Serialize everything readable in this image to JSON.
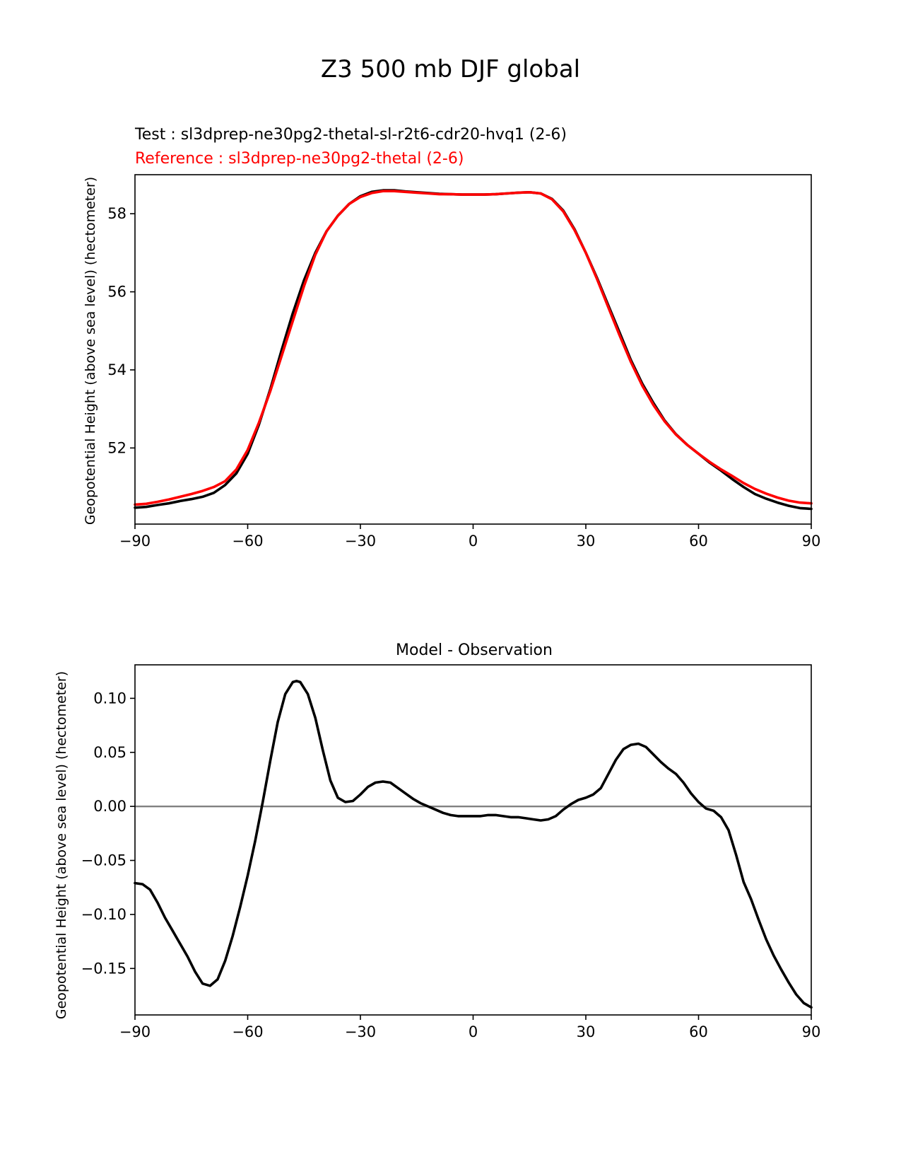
{
  "figure": {
    "title": "Z3 500 mb DJF global"
  },
  "colors": {
    "test": "#000000",
    "reference": "#ff0000",
    "zero_line": "#808080"
  },
  "chart_data": [
    {
      "type": "line",
      "test_label": "Test : sl3dprep-ne30pg2-thetal-sl-r2t6-cdr20-hvq1 (2-6)",
      "reference_label": "Reference : sl3dprep-ne30pg2-thetal (2-6)",
      "title": "",
      "xlabel": "",
      "ylabel": "Geopotential Height (above sea level) (hectometer)",
      "xlim": [
        -90,
        90
      ],
      "ylim": [
        50.05,
        59.0
      ],
      "xticks": [
        -90,
        -60,
        -30,
        0,
        30,
        60,
        90
      ],
      "xtick_labels": [
        "−90",
        "−60",
        "−30",
        "0",
        "30",
        "60",
        "90"
      ],
      "yticks": [
        52,
        54,
        56,
        58
      ],
      "ytick_labels": [
        "52",
        "54",
        "56",
        "58"
      ],
      "grid": false,
      "series": [
        {
          "x": [
            -90,
            -87,
            -84,
            -81,
            -78,
            -75,
            -72,
            -69,
            -66,
            -63,
            -60,
            -57,
            -54,
            -51,
            -48,
            -45,
            -42,
            -39,
            -36,
            -33,
            -30,
            -27,
            -24,
            -21,
            -18,
            -15,
            -12,
            -9,
            -6,
            -3,
            0,
            3,
            6,
            9,
            12,
            15,
            18,
            21,
            24,
            27,
            30,
            33,
            36,
            39,
            42,
            45,
            48,
            51,
            54,
            57,
            60,
            63,
            66,
            69,
            72,
            75,
            78,
            81,
            84,
            87,
            90
          ],
          "y": [
            50.47,
            50.49,
            50.54,
            50.58,
            50.64,
            50.69,
            50.75,
            50.85,
            51.05,
            51.35,
            51.85,
            52.6,
            53.5,
            54.5,
            55.45,
            56.3,
            57.0,
            57.55,
            57.95,
            58.25,
            58.45,
            58.56,
            58.6,
            58.6,
            58.57,
            58.55,
            58.53,
            58.51,
            58.5,
            58.49,
            58.49,
            58.49,
            58.5,
            58.52,
            58.54,
            58.55,
            58.52,
            58.38,
            58.08,
            57.6,
            57.0,
            56.35,
            55.65,
            54.95,
            54.25,
            53.65,
            53.15,
            52.7,
            52.35,
            52.08,
            51.85,
            51.62,
            51.42,
            51.2,
            51.0,
            50.82,
            50.7,
            50.6,
            50.52,
            50.46,
            50.44
          ]
        },
        {
          "x": [
            -90,
            -87,
            -84,
            -81,
            -78,
            -75,
            -72,
            -69,
            -66,
            -63,
            -60,
            -57,
            -54,
            -51,
            -48,
            -45,
            -42,
            -39,
            -36,
            -33,
            -30,
            -27,
            -24,
            -21,
            -18,
            -15,
            -12,
            -9,
            -6,
            -3,
            0,
            3,
            6,
            9,
            12,
            15,
            18,
            21,
            24,
            27,
            30,
            33,
            36,
            39,
            42,
            45,
            48,
            51,
            54,
            57,
            60,
            63,
            66,
            69,
            72,
            75,
            78,
            81,
            84,
            87,
            90
          ],
          "y": [
            50.55,
            50.57,
            50.62,
            50.68,
            50.75,
            50.82,
            50.9,
            51.0,
            51.15,
            51.45,
            51.95,
            52.65,
            53.45,
            54.35,
            55.25,
            56.15,
            56.95,
            57.55,
            57.95,
            58.25,
            58.43,
            58.53,
            58.58,
            58.58,
            58.56,
            58.54,
            58.52,
            58.5,
            58.5,
            58.49,
            58.49,
            58.49,
            58.5,
            58.52,
            58.54,
            58.55,
            58.52,
            58.37,
            58.06,
            57.58,
            57.0,
            56.32,
            55.6,
            54.88,
            54.2,
            53.6,
            53.1,
            52.68,
            52.34,
            52.08,
            51.85,
            51.64,
            51.45,
            51.28,
            51.1,
            50.95,
            50.83,
            50.73,
            50.65,
            50.6,
            50.58
          ]
        }
      ]
    },
    {
      "type": "line",
      "title": "Model - Observation",
      "xlabel": "",
      "ylabel": "Geopotential Height (above sea level) (hectometer)",
      "xlim": [
        -90,
        90
      ],
      "ylim": [
        -0.193,
        0.131
      ],
      "xticks": [
        -90,
        -60,
        -30,
        0,
        30,
        60,
        90
      ],
      "xtick_labels": [
        "−90",
        "−60",
        "−30",
        "0",
        "30",
        "60",
        "90"
      ],
      "yticks": [
        -0.15,
        -0.1,
        -0.05,
        0.0,
        0.05,
        0.1
      ],
      "ytick_labels": [
        "−0.15",
        "−0.10",
        "−0.05",
        "0.00",
        "0.05",
        "0.10"
      ],
      "grid": false,
      "zero_line": 0,
      "series": [
        {
          "x": [
            -90,
            -88,
            -86,
            -84,
            -82,
            -80,
            -78,
            -76,
            -74,
            -72,
            -70,
            -68,
            -66,
            -64,
            -62,
            -60,
            -58,
            -56,
            -54,
            -52,
            -50,
            -48,
            -47,
            -46,
            -44,
            -42,
            -40,
            -38,
            -36,
            -34,
            -32,
            -30,
            -28,
            -26,
            -24,
            -22,
            -20,
            -18,
            -16,
            -14,
            -12,
            -10,
            -8,
            -6,
            -4,
            -2,
            0,
            2,
            4,
            6,
            8,
            10,
            12,
            14,
            16,
            18,
            20,
            22,
            24,
            26,
            28,
            30,
            32,
            34,
            36,
            38,
            40,
            42,
            44,
            46,
            48,
            50,
            52,
            54,
            56,
            58,
            60,
            62,
            64,
            66,
            68,
            70,
            72,
            74,
            76,
            78,
            80,
            82,
            84,
            86,
            88,
            90
          ],
          "y": [
            -0.071,
            -0.072,
            -0.077,
            -0.089,
            -0.103,
            -0.115,
            -0.127,
            -0.139,
            -0.153,
            -0.164,
            -0.166,
            -0.16,
            -0.143,
            -0.12,
            -0.093,
            -0.064,
            -0.032,
            0.004,
            0.042,
            0.078,
            0.104,
            0.115,
            0.116,
            0.115,
            0.104,
            0.082,
            0.052,
            0.024,
            0.008,
            0.004,
            0.005,
            0.011,
            0.018,
            0.022,
            0.023,
            0.022,
            0.017,
            0.012,
            0.007,
            0.003,
            0.0,
            -0.003,
            -0.006,
            -0.008,
            -0.009,
            -0.009,
            -0.009,
            -0.009,
            -0.008,
            -0.008,
            -0.009,
            -0.01,
            -0.01,
            -0.011,
            -0.012,
            -0.013,
            -0.012,
            -0.009,
            -0.003,
            0.002,
            0.006,
            0.008,
            0.011,
            0.017,
            0.03,
            0.043,
            0.053,
            0.057,
            0.058,
            0.055,
            0.048,
            0.041,
            0.035,
            0.03,
            0.022,
            0.012,
            0.004,
            -0.002,
            -0.004,
            -0.01,
            -0.022,
            -0.045,
            -0.07,
            -0.086,
            -0.105,
            -0.123,
            -0.138,
            -0.151,
            -0.163,
            -0.174,
            -0.182,
            -0.186
          ]
        }
      ]
    }
  ]
}
